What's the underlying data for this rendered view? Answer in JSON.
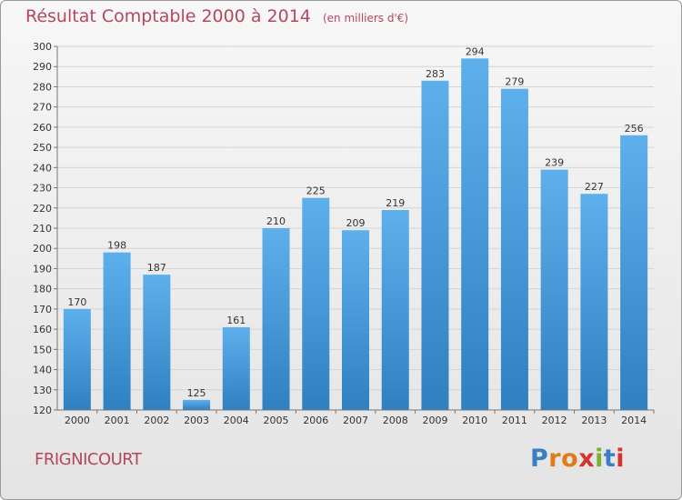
{
  "chart_data": {
    "type": "bar",
    "title": "Résultat Comptable 2000 à 2014",
    "subtitle": "(en milliers d'€)",
    "categories": [
      "2000",
      "2001",
      "2002",
      "2003",
      "2004",
      "2005",
      "2006",
      "2007",
      "2008",
      "2009",
      "2010",
      "2011",
      "2012",
      "2013",
      "2014"
    ],
    "values": [
      170,
      198,
      187,
      125,
      161,
      210,
      225,
      209,
      219,
      283,
      294,
      279,
      239,
      227,
      256
    ],
    "ylim": [
      120,
      300
    ],
    "yticks": [
      120,
      130,
      140,
      150,
      160,
      170,
      180,
      190,
      200,
      210,
      220,
      230,
      240,
      250,
      260,
      270,
      280,
      290,
      300
    ],
    "grid": true,
    "xlabel": "",
    "ylabel": ""
  },
  "commune": "FRIGNICOURT",
  "logo": {
    "letters": [
      "P",
      "r",
      "o",
      "x",
      "i",
      "t",
      "i"
    ],
    "colors": [
      "#3a7fc4",
      "#e07b1a",
      "#e07b1a",
      "#d6322f",
      "#7ab32e",
      "#3a7fc4",
      "#d6322f"
    ]
  },
  "colors": {
    "title": "#b5475e",
    "bar_top": "#5eb0ec",
    "bar_bottom": "#2f80c1"
  }
}
